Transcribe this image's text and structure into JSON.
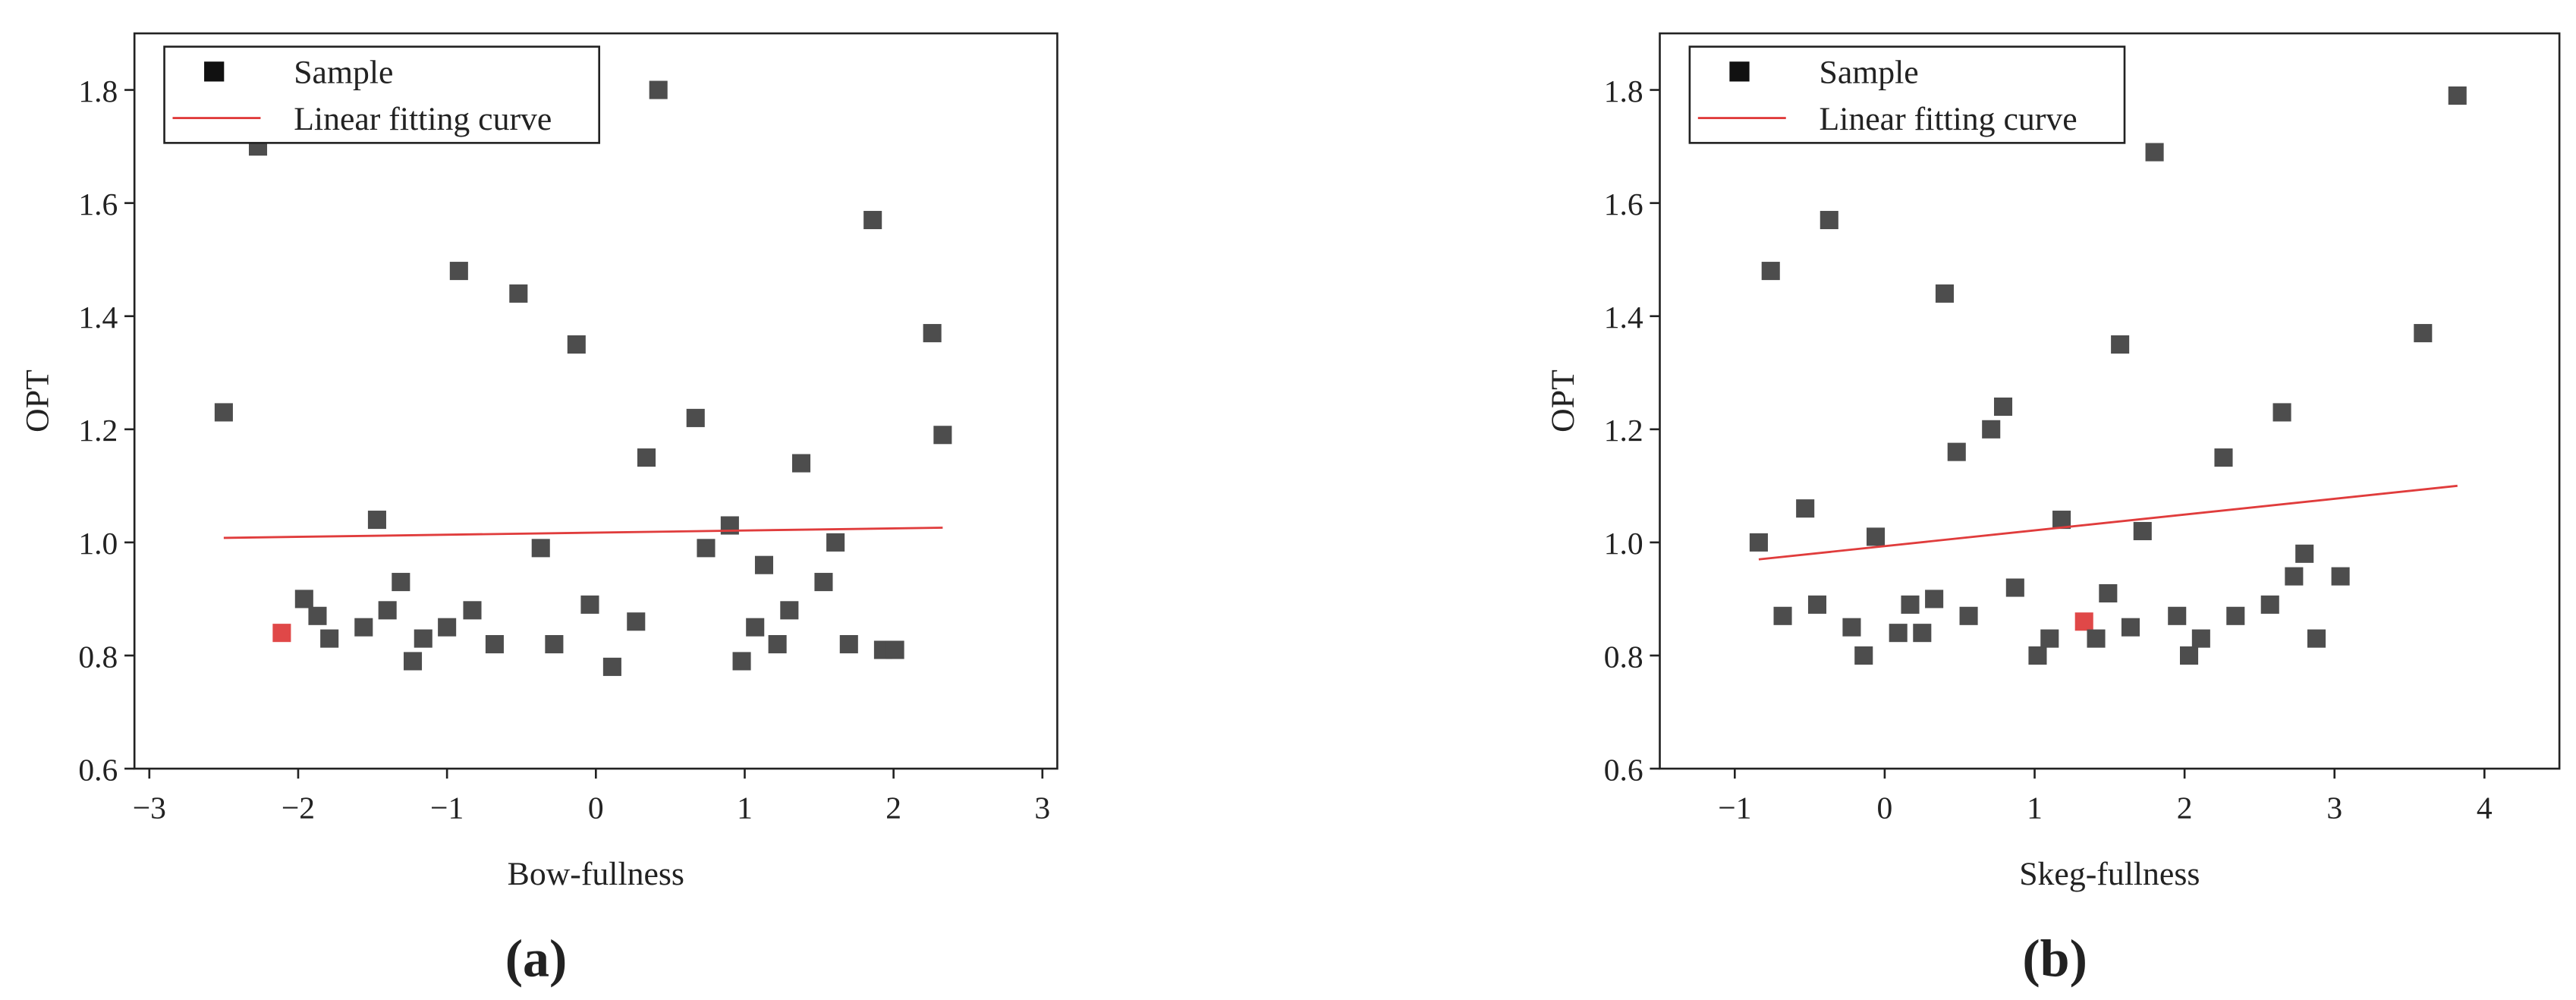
{
  "chart_data": [
    {
      "type": "scatter",
      "caption": "(a)",
      "x_label": "Bow-fullness",
      "y_label": "OPT",
      "xlim": [
        -3.1,
        3.1
      ],
      "ylim": [
        0.6,
        1.9
      ],
      "xticks": [
        {
          "value": -3,
          "label": "−3"
        },
        {
          "value": -2,
          "label": "−2"
        },
        {
          "value": -1,
          "label": "−1"
        },
        0,
        1,
        2,
        3
      ],
      "yticks": [
        0.6,
        0.8,
        {
          "value": 1,
          "label": "1.0"
        },
        1.2,
        1.4,
        1.6,
        1.8
      ],
      "legend": "top-left",
      "series": [
        {
          "name": "Sample",
          "type": "scatter",
          "color": "#4d4d4d",
          "highlight": {
            "index": 2,
            "color": "#e04848"
          },
          "x": [
            -2.5,
            -2.27,
            -2.11,
            -1.96,
            -1.87,
            -1.79,
            -1.56,
            -1.47,
            -1.4,
            -1.31,
            -1.23,
            -1.16,
            -1.0,
            -0.92,
            -0.83,
            -0.68,
            -0.52,
            -0.37,
            -0.28,
            -0.13,
            -0.04,
            0.11,
            0.27,
            0.34,
            0.42,
            0.67,
            0.74,
            0.9,
            0.98,
            1.07,
            1.13,
            1.22,
            1.3,
            1.38,
            1.53,
            1.61,
            1.7,
            1.86,
            1.93,
            2.01,
            2.26,
            2.33
          ],
          "values": [
            1.23,
            1.7,
            0.84,
            0.9,
            0.87,
            0.83,
            0.85,
            1.04,
            0.88,
            0.93,
            0.79,
            0.83,
            0.85,
            1.48,
            0.88,
            0.82,
            1.44,
            0.99,
            0.82,
            1.35,
            0.89,
            0.78,
            0.86,
            1.15,
            1.8,
            1.22,
            0.99,
            1.03,
            0.79,
            0.85,
            0.96,
            0.82,
            0.88,
            1.14,
            0.93,
            1.0,
            0.82,
            1.57,
            0.81,
            0.81,
            1.37,
            1.19
          ]
        },
        {
          "name": "Linear fitting curve",
          "type": "line",
          "color": "#e03c3c",
          "x": [
            -2.5,
            2.33
          ],
          "values": [
            1.008,
            1.026
          ]
        }
      ]
    },
    {
      "type": "scatter",
      "caption": "(b)",
      "x_label": "Skeg-fullness",
      "y_label": "OPT",
      "xlim": [
        -1.5,
        4.5
      ],
      "ylim": [
        0.6,
        1.9
      ],
      "xticks": [
        {
          "value": -1,
          "label": "−1"
        },
        0,
        1,
        2,
        3,
        4
      ],
      "yticks": [
        0.6,
        0.8,
        {
          "value": 1,
          "label": "1.0"
        },
        1.2,
        1.4,
        1.6,
        1.8
      ],
      "legend": "top-left",
      "series": [
        {
          "name": "Sample",
          "type": "scatter",
          "color": "#4d4d4d",
          "highlight": {
            "index": 22,
            "color": "#e04848"
          },
          "x": [
            -0.84,
            -0.76,
            -0.68,
            -0.53,
            -0.45,
            -0.37,
            -0.22,
            -0.14,
            -0.06,
            0.09,
            0.17,
            0.25,
            0.33,
            0.4,
            0.48,
            0.56,
            0.71,
            0.79,
            0.87,
            1.02,
            1.1,
            1.18,
            1.33,
            1.41,
            1.49,
            1.57,
            1.64,
            1.72,
            1.8,
            1.95,
            2.03,
            2.11,
            2.26,
            2.34,
            2.57,
            2.65,
            2.73,
            2.8,
            2.88,
            3.04,
            3.59,
            3.82
          ],
          "values": [
            1.0,
            1.48,
            0.87,
            1.06,
            0.89,
            1.57,
            0.85,
            0.8,
            1.01,
            0.84,
            0.89,
            0.84,
            0.9,
            1.44,
            1.16,
            0.87,
            1.2,
            1.24,
            0.92,
            0.8,
            0.83,
            1.04,
            0.86,
            0.83,
            0.91,
            1.35,
            0.85,
            1.02,
            1.69,
            0.87,
            0.8,
            0.83,
            1.15,
            0.87,
            0.89,
            1.23,
            0.94,
            0.98,
            0.83,
            0.94,
            1.37,
            1.79
          ]
        },
        {
          "name": "Linear fitting curve",
          "type": "line",
          "color": "#e03c3c",
          "x": [
            -0.84,
            3.82
          ],
          "values": [
            0.97,
            1.1
          ]
        }
      ]
    }
  ]
}
